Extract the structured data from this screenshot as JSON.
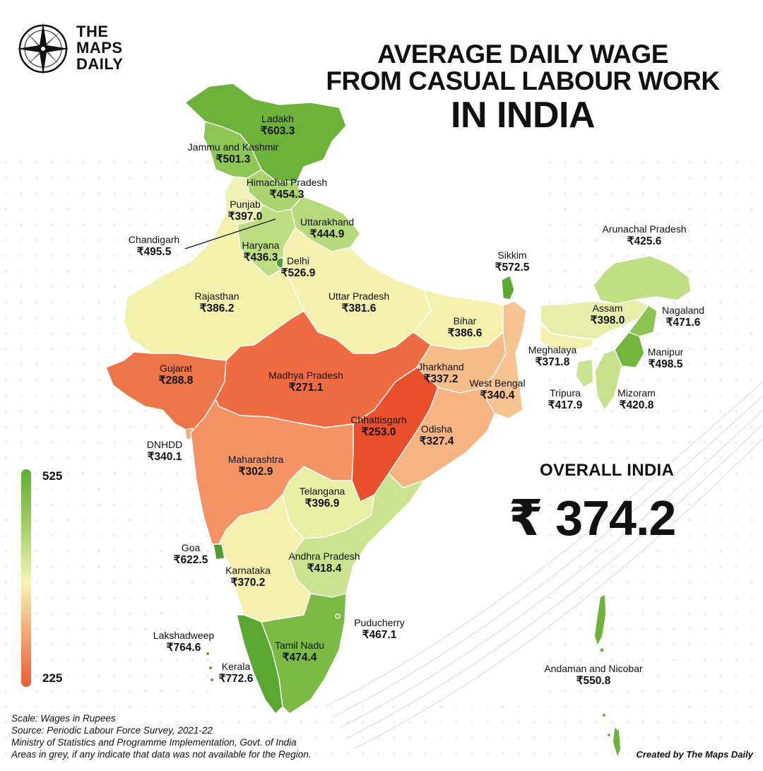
{
  "brand": {
    "line1": "THE",
    "line2": "MAPS",
    "line3": "DAILY",
    "icon": "compass-icon"
  },
  "title": {
    "line1": "AVERAGE DAILY WAGE",
    "line2": "FROM CASUAL LABOUR WORK",
    "line3": "IN INDIA"
  },
  "overall": {
    "label": "OVERALL INDIA",
    "value": "₹ 374.2"
  },
  "legend": {
    "max_label": "525",
    "min_label": "225",
    "colors": [
      "#5fae32",
      "#f6f4b4",
      "#ee5a33"
    ]
  },
  "regions": [
    {
      "name": "Ladakh",
      "value": "₹603.3"
    },
    {
      "name": "Jammu and Kashmir",
      "value": "₹501.3"
    },
    {
      "name": "Himachal Pradesh",
      "value": "₹454.3"
    },
    {
      "name": "Punjab",
      "value": "₹397.0"
    },
    {
      "name": "Uttarakhand",
      "value": "₹444.9"
    },
    {
      "name": "Chandigarh",
      "value": "₹495.5"
    },
    {
      "name": "Haryana",
      "value": "₹436.3"
    },
    {
      "name": "Delhi",
      "value": "₹526.9"
    },
    {
      "name": "Rajasthan",
      "value": "₹386.2"
    },
    {
      "name": "Uttar Pradesh",
      "value": "₹381.6"
    },
    {
      "name": "Bihar",
      "value": "₹386.6"
    },
    {
      "name": "Sikkim",
      "value": "₹572.5"
    },
    {
      "name": "Arunachal Pradesh",
      "value": "₹425.6"
    },
    {
      "name": "Assam",
      "value": "₹398.0"
    },
    {
      "name": "Nagaland",
      "value": "₹471.6"
    },
    {
      "name": "Meghalaya",
      "value": "₹371.8"
    },
    {
      "name": "Manipur",
      "value": "₹498.5"
    },
    {
      "name": "Tripura",
      "value": "₹417.9"
    },
    {
      "name": "Mizoram",
      "value": "₹420.8"
    },
    {
      "name": "Gujarat",
      "value": "₹288.8"
    },
    {
      "name": "Madhya Pradesh",
      "value": "₹271.1"
    },
    {
      "name": "Jharkhand",
      "value": "₹337.2"
    },
    {
      "name": "West Bengal",
      "value": "₹340.4"
    },
    {
      "name": "Chhattisgarh",
      "value": "₹253.0"
    },
    {
      "name": "Odisha",
      "value": "₹327.4"
    },
    {
      "name": "DNHDD",
      "value": "₹340.1"
    },
    {
      "name": "Maharashtra",
      "value": "₹302.9"
    },
    {
      "name": "Telangana",
      "value": "₹396.9"
    },
    {
      "name": "Goa",
      "value": "₹622.5"
    },
    {
      "name": "Andhra Pradesh",
      "value": "₹418.4"
    },
    {
      "name": "Karnataka",
      "value": "₹370.2"
    },
    {
      "name": "Puducherry",
      "value": "₹467.1"
    },
    {
      "name": "Lakshadweep",
      "value": "₹764.6"
    },
    {
      "name": "Tamil Nadu",
      "value": "₹474.4"
    },
    {
      "name": "Kerala",
      "value": "₹772.6"
    },
    {
      "name": "Andaman and Nicobar",
      "value": "₹550.8"
    }
  ],
  "footer": {
    "scale": "Scale: Wages in Rupees",
    "source": "Source: Periodic Labour Force Survey, 2021-22",
    "ministry": "Ministry of Statistics and Programme Implementation, Govt. of India",
    "note": "Areas in grey, if any indicate that data was not available for the Region.",
    "credit": "Created by The Maps Daily"
  }
}
